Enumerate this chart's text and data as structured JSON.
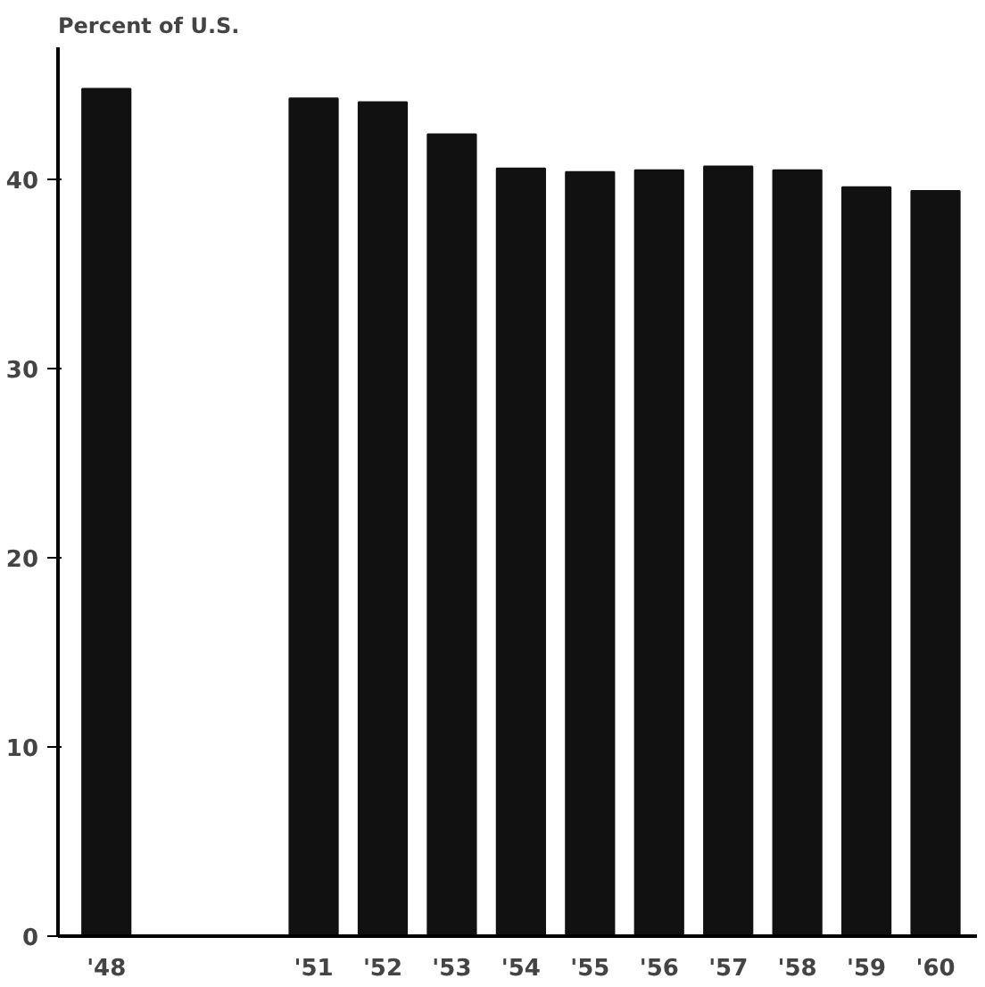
{
  "chart_data": {
    "type": "bar",
    "ylabel": "Percent of U.S.",
    "x": [
      1948,
      1951,
      1952,
      1953,
      1954,
      1955,
      1956,
      1957,
      1958,
      1959,
      1960
    ],
    "values": [
      44.8,
      44.3,
      44.1,
      42.4,
      40.6,
      40.4,
      40.5,
      40.7,
      40.5,
      39.6,
      39.4
    ],
    "color": "#111111",
    "xlim": [
      1947.3,
      1960.6
    ],
    "xticks": [
      {
        "value": 1948,
        "label": "'48"
      },
      {
        "value": 1951,
        "label": "'51"
      },
      {
        "value": 1952,
        "label": "'52"
      },
      {
        "value": 1953,
        "label": "'53"
      },
      {
        "value": 1954,
        "label": "'54"
      },
      {
        "value": 1955,
        "label": "'55"
      },
      {
        "value": 1956,
        "label": "'56"
      },
      {
        "value": 1957,
        "label": "'57"
      },
      {
        "value": 1958,
        "label": "'58"
      },
      {
        "value": 1959,
        "label": "'59"
      },
      {
        "value": 1960,
        "label": "'60"
      }
    ],
    "ylim": [
      0,
      47
    ],
    "yticks": [
      0,
      10,
      20,
      30,
      40
    ],
    "grid": false
  }
}
